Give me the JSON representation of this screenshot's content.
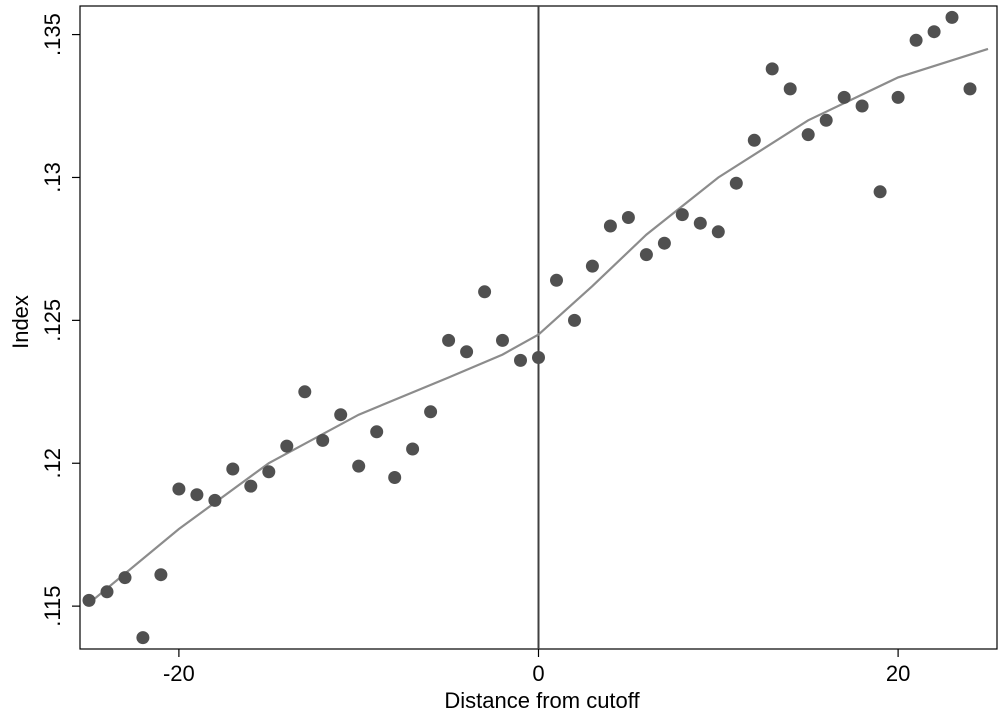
{
  "chart_data": {
    "type": "scatter",
    "title": "",
    "xlabel": "Distance from cutoff",
    "ylabel": "Index",
    "xlim": [
      -25.5,
      25.5
    ],
    "ylim": [
      0.1135,
      0.136
    ],
    "x_ticks": [
      -20,
      0,
      20
    ],
    "x_tick_labels": [
      "-20",
      "0",
      "20"
    ],
    "y_ticks": [
      0.115,
      0.12,
      0.125,
      0.13,
      0.135
    ],
    "y_tick_labels": [
      ".115",
      ".12",
      ".125",
      ".13",
      ".135"
    ],
    "grid": false,
    "legend": "none",
    "cutoff_x": 0,
    "colors": {
      "points": "#505050",
      "fit": "#8c8c8c",
      "cutoff": "#404040",
      "axis": "#000000"
    },
    "series": [
      {
        "type": "scatter",
        "x": [
          -25,
          -24,
          -23,
          -22,
          -21,
          -20,
          -19,
          -18,
          -17,
          -16,
          -15,
          -14,
          -13,
          -12,
          -11,
          -10,
          -9,
          -8,
          -7,
          -6,
          -5,
          -4,
          -3,
          -2,
          -1,
          0,
          1,
          2,
          3,
          4,
          5,
          6,
          7,
          8,
          9,
          10,
          11,
          12,
          13,
          14,
          15,
          16,
          17,
          18,
          19,
          20,
          21,
          22,
          23,
          24
        ],
        "y": [
          0.1152,
          0.1155,
          0.116,
          0.1139,
          0.1161,
          0.1191,
          0.1189,
          0.1187,
          0.1198,
          0.1192,
          0.1197,
          0.1206,
          0.1225,
          0.1208,
          0.1217,
          0.1199,
          0.1211,
          0.1195,
          0.1205,
          0.1218,
          0.1243,
          0.1239,
          0.126,
          0.1243,
          0.1236,
          0.1237,
          0.1264,
          0.125,
          0.1269,
          0.1283,
          0.1286,
          0.1273,
          0.1277,
          0.1287,
          0.1284,
          0.1281,
          0.1298,
          0.1313,
          0.1338,
          0.1331,
          0.1315,
          0.132,
          0.1328,
          0.1325,
          0.1295,
          0.1328,
          0.1348,
          0.1351,
          0.1356,
          0.1331
        ]
      },
      {
        "type": "line",
        "x": [
          -25,
          -20,
          -15,
          -10,
          -5,
          -2,
          0
        ],
        "y": [
          0.1151,
          0.1177,
          0.12,
          0.1217,
          0.123,
          0.1238,
          0.1245
        ]
      },
      {
        "type": "line",
        "x": [
          0,
          3,
          6,
          10,
          15,
          20,
          25
        ],
        "y": [
          0.1245,
          0.1262,
          0.128,
          0.13,
          0.132,
          0.1335,
          0.1345
        ]
      }
    ]
  }
}
